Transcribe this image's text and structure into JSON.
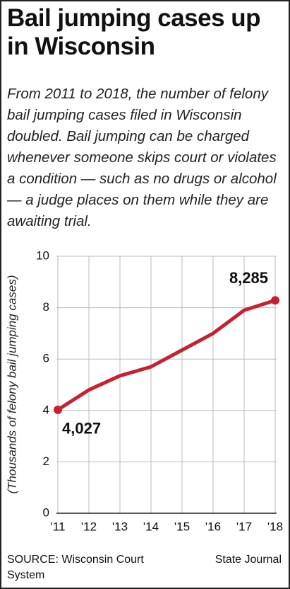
{
  "chart_data": {
    "type": "line",
    "title": "Bail jumping cases up in Wisconsin",
    "subtitle": "From 2011 to 2018, the number of felony bail jumping cases filed in Wisconsin doubled. Bail jumping can be charged whenever someone skips court or violates a condition — such as no drugs or alcohol — a judge places on them while they are awaiting trial.",
    "y_label": "(Thousands of felony bail jumping cases)",
    "categories": [
      "'11",
      "'12",
      "'13",
      "'14",
      "'15",
      "'16",
      "'17",
      "'18"
    ],
    "series": [
      {
        "name": "Felony bail jumping cases",
        "color": "#c8202f",
        "values": [
          4.027,
          4.8,
          5.35,
          5.7,
          6.35,
          7.0,
          7.9,
          8.285
        ],
        "value_labels": [
          "4,027",
          null,
          null,
          null,
          null,
          null,
          null,
          "8,285"
        ]
      }
    ],
    "ylim": [
      0,
      10
    ],
    "yticks": [
      0,
      2,
      4,
      6,
      8,
      10
    ],
    "grid": true,
    "source": "SOURCE: Wisconsin Court System",
    "credit": "State Journal"
  }
}
